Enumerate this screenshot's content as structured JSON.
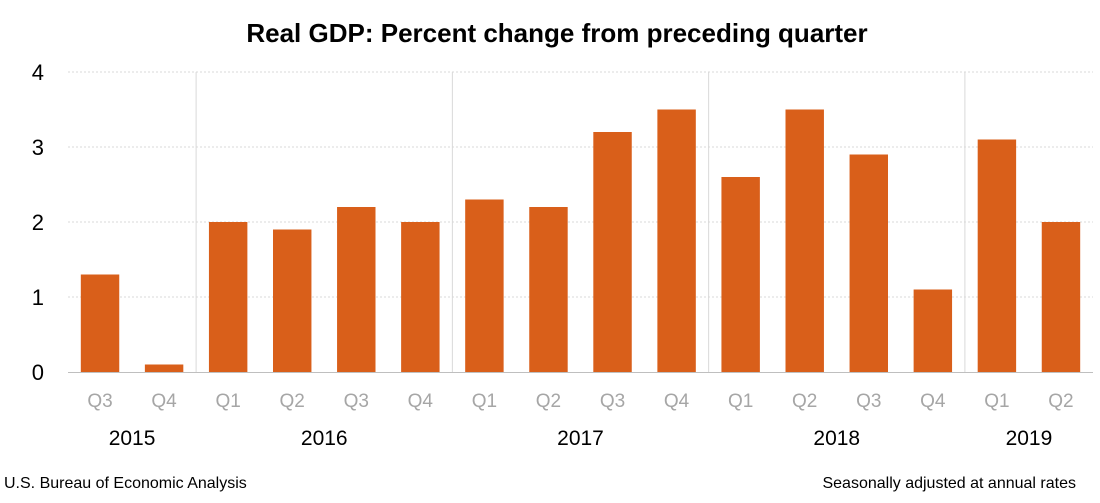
{
  "chart_data": {
    "type": "bar",
    "title": "Real GDP:  Percent change from preceding quarter",
    "categories": [
      "Q3",
      "Q4",
      "Q1",
      "Q2",
      "Q3",
      "Q4",
      "Q1",
      "Q2",
      "Q3",
      "Q4",
      "Q1",
      "Q2",
      "Q3",
      "Q4",
      "Q1",
      "Q2"
    ],
    "years": [
      {
        "label": "2015",
        "start": 0,
        "count": 2
      },
      {
        "label": "2016",
        "start": 2,
        "count": 4
      },
      {
        "label": "2017",
        "start": 6,
        "count": 4
      },
      {
        "label": "2018",
        "start": 10,
        "count": 4
      },
      {
        "label": "2019",
        "start": 14,
        "count": 2
      }
    ],
    "values": [
      1.3,
      0.1,
      2.0,
      1.9,
      2.2,
      2.0,
      2.3,
      2.2,
      3.2,
      3.5,
      2.6,
      3.5,
      2.9,
      1.1,
      3.1,
      2.0
    ],
    "ylim": [
      0,
      4
    ],
    "yticks": [
      0,
      1,
      2,
      3,
      4
    ],
    "xlabel": "",
    "ylabel": "",
    "grid": true,
    "bar_color": "#d95f1a",
    "source_note": "U.S. Bureau of Economic Analysis",
    "rate_note": "Seasonally adjusted at annual rates"
  }
}
